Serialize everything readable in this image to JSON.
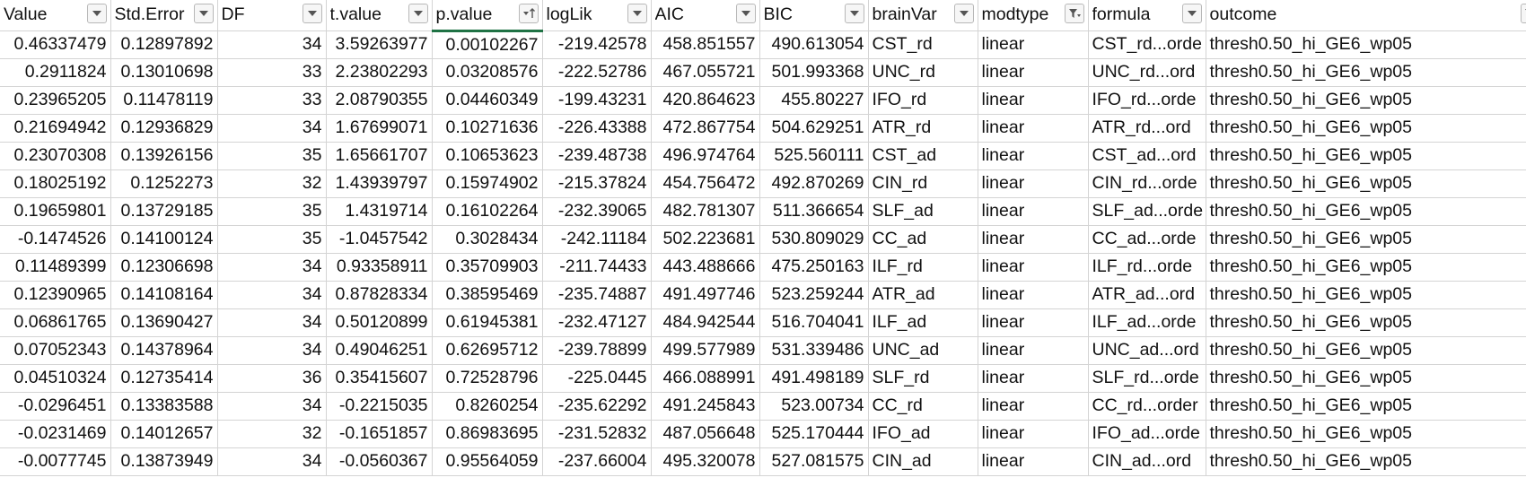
{
  "sheet": {
    "columns": [
      {
        "label": "Value",
        "filter": "dropdown"
      },
      {
        "label": "Std.Error",
        "filter": "dropdown"
      },
      {
        "label": "DF",
        "filter": "dropdown"
      },
      {
        "label": "t.value",
        "filter": "dropdown"
      },
      {
        "label": "p.value",
        "filter": "sort-ascending"
      },
      {
        "label": "logLik",
        "filter": "dropdown"
      },
      {
        "label": "AIC",
        "filter": "dropdown"
      },
      {
        "label": "BIC",
        "filter": "dropdown"
      },
      {
        "label": "brainVar",
        "filter": "dropdown"
      },
      {
        "label": "modtype",
        "filter": "filtered"
      },
      {
        "label": "formula",
        "filter": "dropdown"
      },
      {
        "label": "outcome",
        "filter": "filtered"
      }
    ],
    "rows": [
      [
        "0.46337479",
        "0.12897892",
        "34",
        "3.59263977",
        "0.00102267",
        "-219.42578",
        "458.851557",
        "490.613054",
        "CST_rd",
        "linear",
        "CST_rd...orde",
        "thresh0.50_hi_GE6_wp05"
      ],
      [
        "0.2911824",
        "0.13010698",
        "33",
        "2.23802293",
        "0.03208576",
        "-222.52786",
        "467.055721",
        "501.993368",
        "UNC_rd",
        "linear",
        "UNC_rd...ord",
        "thresh0.50_hi_GE6_wp05"
      ],
      [
        "0.23965205",
        "0.11478119",
        "33",
        "2.08790355",
        "0.04460349",
        "-199.43231",
        "420.864623",
        "455.80227",
        "IFO_rd",
        "linear",
        "IFO_rd...orde",
        "thresh0.50_hi_GE6_wp05"
      ],
      [
        "0.21694942",
        "0.12936829",
        "34",
        "1.67699071",
        "0.10271636",
        "-226.43388",
        "472.867754",
        "504.629251",
        "ATR_rd",
        "linear",
        "ATR_rd...ord",
        "thresh0.50_hi_GE6_wp05"
      ],
      [
        "0.23070308",
        "0.13926156",
        "35",
        "1.65661707",
        "0.10653623",
        "-239.48738",
        "496.974764",
        "525.560111",
        "CST_ad",
        "linear",
        "CST_ad...ord",
        "thresh0.50_hi_GE6_wp05"
      ],
      [
        "0.18025192",
        "0.1252273",
        "32",
        "1.43939797",
        "0.15974902",
        "-215.37824",
        "454.756472",
        "492.870269",
        "CIN_rd",
        "linear",
        "CIN_rd...orde",
        "thresh0.50_hi_GE6_wp05"
      ],
      [
        "0.19659801",
        "0.13729185",
        "35",
        "1.4319714",
        "0.16102264",
        "-232.39065",
        "482.781307",
        "511.366654",
        "SLF_ad",
        "linear",
        "SLF_ad...orde",
        "thresh0.50_hi_GE6_wp05"
      ],
      [
        "-0.1474526",
        "0.14100124",
        "35",
        "-1.0457542",
        "0.3028434",
        "-242.11184",
        "502.223681",
        "530.809029",
        "CC_ad",
        "linear",
        "CC_ad...orde",
        "thresh0.50_hi_GE6_wp05"
      ],
      [
        "0.11489399",
        "0.12306698",
        "34",
        "0.93358911",
        "0.35709903",
        "-211.74433",
        "443.488666",
        "475.250163",
        "ILF_rd",
        "linear",
        "ILF_rd...orde",
        "thresh0.50_hi_GE6_wp05"
      ],
      [
        "0.12390965",
        "0.14108164",
        "34",
        "0.87828334",
        "0.38595469",
        "-235.74887",
        "491.497746",
        "523.259244",
        "ATR_ad",
        "linear",
        "ATR_ad...ord",
        "thresh0.50_hi_GE6_wp05"
      ],
      [
        "0.06861765",
        "0.13690427",
        "34",
        "0.50120899",
        "0.61945381",
        "-232.47127",
        "484.942544",
        "516.704041",
        "ILF_ad",
        "linear",
        "ILF_ad...orde",
        "thresh0.50_hi_GE6_wp05"
      ],
      [
        "0.07052343",
        "0.14378964",
        "34",
        "0.49046251",
        "0.62695712",
        "-239.78899",
        "499.577989",
        "531.339486",
        "UNC_ad",
        "linear",
        "UNC_ad...ord",
        "thresh0.50_hi_GE6_wp05"
      ],
      [
        "0.04510324",
        "0.12735414",
        "36",
        "0.35415607",
        "0.72528796",
        "-225.0445",
        "466.088991",
        "491.498189",
        "SLF_rd",
        "linear",
        "SLF_rd...orde",
        "thresh0.50_hi_GE6_wp05"
      ],
      [
        "-0.0296451",
        "0.13383588",
        "34",
        "-0.2215035",
        "0.8260254",
        "-235.62292",
        "491.245843",
        "523.00734",
        "CC_rd",
        "linear",
        "CC_rd...order",
        "thresh0.50_hi_GE6_wp05"
      ],
      [
        "-0.0231469",
        "0.14012657",
        "32",
        "-0.1651857",
        "0.86983695",
        "-231.52832",
        "487.056648",
        "525.170444",
        "IFO_ad",
        "linear",
        "IFO_ad...orde",
        "thresh0.50_hi_GE6_wp05"
      ],
      [
        "-0.0077745",
        "0.13873949",
        "34",
        "-0.0560367",
        "0.95564059",
        "-237.66004",
        "495.320078",
        "527.081575",
        "CIN_ad",
        "linear",
        "CIN_ad...ord",
        "thresh0.50_hi_GE6_wp05"
      ]
    ]
  },
  "colors": {
    "active_column": "#1f7244",
    "gridline": "#d4d4d4",
    "text": "#111111"
  }
}
